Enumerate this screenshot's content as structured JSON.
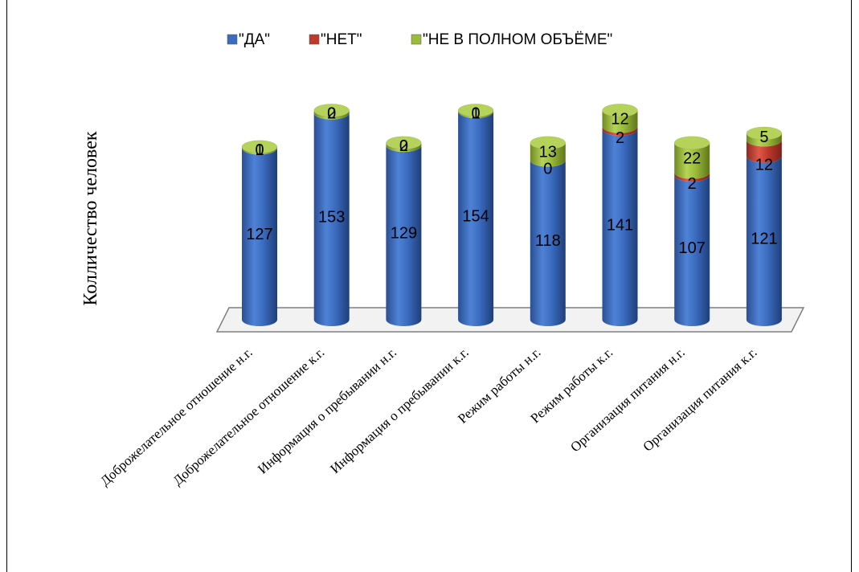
{
  "chart_data": {
    "type": "bar",
    "stacked": true,
    "style": "3d-cylinder",
    "ylabel": "Колличество человек",
    "legend_position": "top",
    "categories": [
      "Доброжелательное отношение н.г.",
      "Доброжелательное отношение к.г.",
      "Информация о пребывании н.г.",
      "Информация о пребывании к.г.",
      "Режим работы н.г.",
      "Режим работы к.г.",
      "Организация питания н.г.",
      "Организация питания к.г."
    ],
    "series": [
      {
        "name": "\"ДА\"",
        "color": "#3b6cc0",
        "values": [
          127,
          153,
          129,
          154,
          118,
          141,
          107,
          121
        ]
      },
      {
        "name": "\"НЕТ\"",
        "color": "#c0392b",
        "values": [
          0,
          0,
          0,
          0,
          0,
          2,
          2,
          12
        ]
      },
      {
        "name": "\"НЕ В ПОЛНОМ ОБЪЁМЕ\"",
        "color": "#9bbb3a",
        "values": [
          1,
          2,
          2,
          1,
          13,
          12,
          22,
          5
        ]
      }
    ]
  }
}
